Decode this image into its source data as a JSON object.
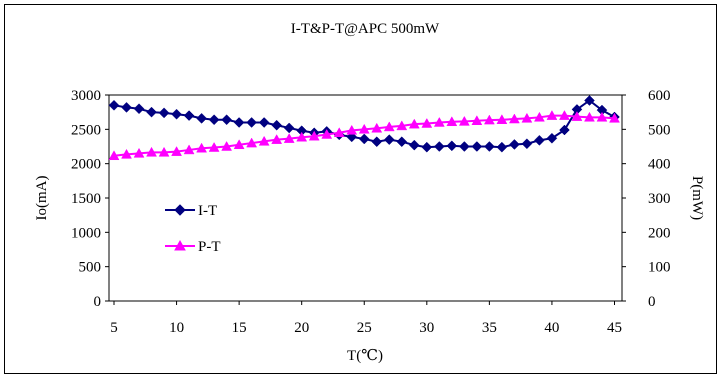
{
  "chart_data": {
    "type": "line",
    "title": "I-T&P-T@APC 500mW",
    "xlabel": "T(℃)",
    "ylabel_left": "Io(mA)",
    "ylabel_right": "P(mW)",
    "xlim": [
      4.6,
      45.6
    ],
    "ylim_left": [
      0,
      3000
    ],
    "ylim_right": [
      0,
      600
    ],
    "x_ticks": [
      5,
      10,
      15,
      20,
      25,
      30,
      35,
      40,
      45
    ],
    "y_ticks_left": [
      0,
      500,
      1000,
      1500,
      2000,
      2500,
      3000
    ],
    "y_ticks_right": [
      0,
      100,
      200,
      300,
      400,
      500,
      600
    ],
    "grid": false,
    "legend_position": "center-left",
    "x": [
      5,
      6,
      7,
      8,
      9,
      10,
      11,
      12,
      13,
      14,
      15,
      16,
      17,
      18,
      19,
      20,
      21,
      22,
      23,
      24,
      25,
      26,
      27,
      28,
      29,
      30,
      31,
      32,
      33,
      34,
      35,
      36,
      37,
      38,
      39,
      40,
      41,
      42,
      43,
      44,
      45
    ],
    "series": [
      {
        "name": "I-T",
        "axis": "left",
        "color": "#000080",
        "marker": "diamond",
        "values": [
          2850,
          2820,
          2800,
          2750,
          2740,
          2720,
          2700,
          2660,
          2640,
          2640,
          2600,
          2600,
          2600,
          2560,
          2520,
          2480,
          2450,
          2470,
          2420,
          2390,
          2360,
          2320,
          2350,
          2320,
          2270,
          2240,
          2250,
          2260,
          2250,
          2250,
          2250,
          2240,
          2280,
          2290,
          2340,
          2370,
          2490,
          2790,
          2920,
          2780,
          2680
        ]
      },
      {
        "name": "P-T",
        "axis": "right",
        "color": "#ff00ff",
        "marker": "triangle",
        "values": [
          423,
          427,
          430,
          433,
          433,
          435,
          440,
          445,
          447,
          450,
          455,
          460,
          465,
          470,
          473,
          477,
          480,
          485,
          490,
          497,
          500,
          503,
          507,
          510,
          515,
          517,
          520,
          522,
          523,
          525,
          527,
          528,
          530,
          532,
          535,
          540,
          540,
          537,
          535,
          535,
          532
        ]
      }
    ]
  }
}
